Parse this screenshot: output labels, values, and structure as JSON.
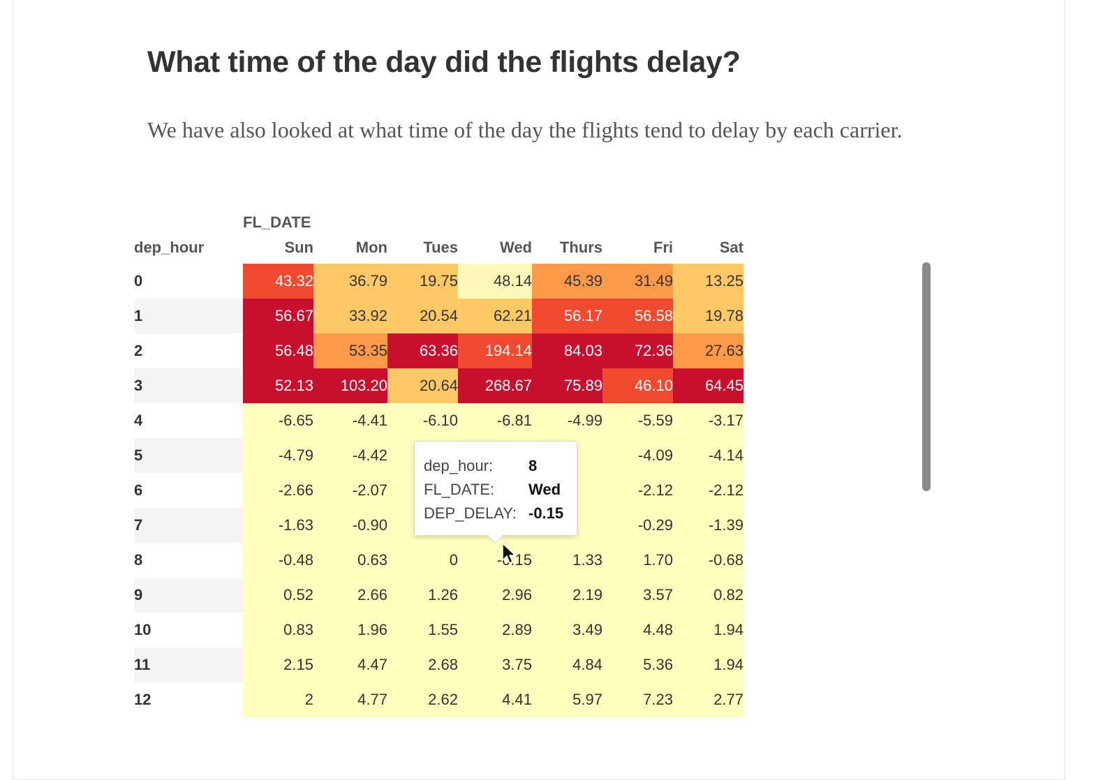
{
  "page": {
    "title": "What time of the day did the flights delay?",
    "paragraph": "We have also looked at what time of the day the flights tend to delay by each carrier."
  },
  "table": {
    "column_title": "FL_DATE",
    "index_name": "dep_hour",
    "columns": [
      "Sun",
      "Mon",
      "Tues",
      "Wed",
      "Thurs",
      "Fri",
      "Sat"
    ],
    "rows": [
      {
        "hour": "0",
        "values": [
          "43.32",
          "36.79",
          "19.75",
          "48.14",
          "45.39",
          "31.49",
          "13.25"
        ]
      },
      {
        "hour": "1",
        "values": [
          "56.67",
          "33.92",
          "20.54",
          "62.21",
          "56.17",
          "56.58",
          "19.78"
        ]
      },
      {
        "hour": "2",
        "values": [
          "56.48",
          "53.35",
          "63.36",
          "194.14",
          "84.03",
          "72.36",
          "27.63"
        ]
      },
      {
        "hour": "3",
        "values": [
          "52.13",
          "103.20",
          "20.64",
          "268.67",
          "75.89",
          "46.10",
          "64.45"
        ]
      },
      {
        "hour": "4",
        "values": [
          "-6.65",
          "-4.41",
          "-6.10",
          "-6.81",
          "-4.99",
          "-5.59",
          "-3.17"
        ]
      },
      {
        "hour": "5",
        "values": [
          "-4.79",
          "-4.42",
          "",
          "",
          "",
          "-4.09",
          "-4.14"
        ]
      },
      {
        "hour": "6",
        "values": [
          "-2.66",
          "-2.07",
          "",
          "",
          "",
          "-2.12",
          "-2.12"
        ]
      },
      {
        "hour": "7",
        "values": [
          "-1.63",
          "-0.90",
          "",
          "",
          "",
          "-0.29",
          "-1.39"
        ]
      },
      {
        "hour": "8",
        "values": [
          "-0.48",
          "0.63",
          "0",
          "-0.15",
          "1.33",
          "1.70",
          "-0.68"
        ]
      },
      {
        "hour": "9",
        "values": [
          "0.52",
          "2.66",
          "1.26",
          "2.96",
          "2.19",
          "3.57",
          "0.82"
        ]
      },
      {
        "hour": "10",
        "values": [
          "0.83",
          "1.96",
          "1.55",
          "2.89",
          "3.49",
          "4.48",
          "1.94"
        ]
      },
      {
        "hour": "11",
        "values": [
          "2.15",
          "4.47",
          "2.68",
          "3.75",
          "4.84",
          "5.36",
          "1.94"
        ]
      },
      {
        "hour": "12",
        "values": [
          "2",
          "4.77",
          "2.62",
          "4.41",
          "5.97",
          "7.23",
          "2.77"
        ]
      }
    ],
    "colors": [
      [
        "#ef4a30",
        "#fec866",
        "#fec866",
        "#fff8b8",
        "#fd9a4a",
        "#fd9a4a",
        "#fec866"
      ],
      [
        "#c8102e",
        "#fec866",
        "#fec866",
        "#fec866",
        "#ef4a30",
        "#ef4a30",
        "#fec866"
      ],
      [
        "#c8102e",
        "#fd9a4a",
        "#c8102e",
        "#ef4a30",
        "#c8102e",
        "#c8102e",
        "#fd9a4a"
      ],
      [
        "#c8102e",
        "#c8102e",
        "#fec866",
        "#c8102e",
        "#c8102e",
        "#ef4a30",
        "#c8102e"
      ]
    ],
    "pale_color": "#ffffbe"
  },
  "tooltip": {
    "rows": [
      {
        "label": "dep_hour:",
        "value": "8"
      },
      {
        "label": "FL_DATE:",
        "value": "Wed"
      },
      {
        "label": "DEP_DELAY:",
        "value": "-0.15"
      }
    ]
  },
  "cursor_icon": "arrow-pointer-icon"
}
